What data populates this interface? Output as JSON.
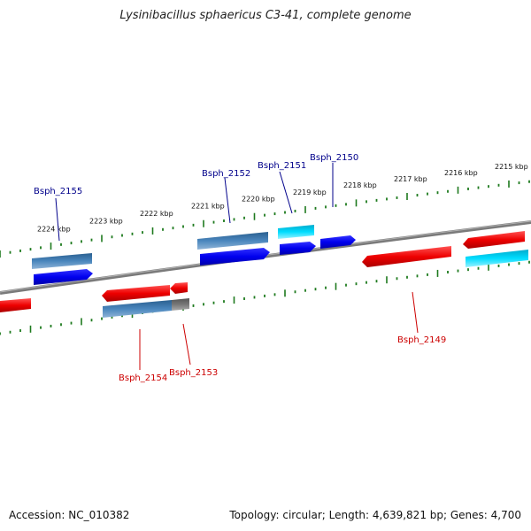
{
  "title": "Lysinibacillus sphaericus C3-41, complete genome",
  "footer": {
    "accession": "Accession: NC_010382",
    "summary": "Topology: circular; Length: 4,639,821 bp; Genes: 4,700"
  },
  "colors": {
    "backbone": "#808080",
    "tick": "#1e7a1e",
    "label_blue": "#00008b",
    "label_red": "#cc0000"
  },
  "ruler_labels": [
    "2224 kbp",
    "2223 kbp",
    "2222 kbp",
    "2221 kbp",
    "2220 kbp",
    "2219 kbp",
    "2218 kbp",
    "2217 kbp",
    "2216 kbp",
    "2215 kbp"
  ],
  "gene_labels": {
    "top": [
      "Bsph_2155",
      "Bsph_2152",
      "Bsph_2151",
      "Bsph_2150"
    ],
    "bottom": [
      "Bsph_2154",
      "Bsph_2153",
      "Bsph_2149"
    ]
  }
}
